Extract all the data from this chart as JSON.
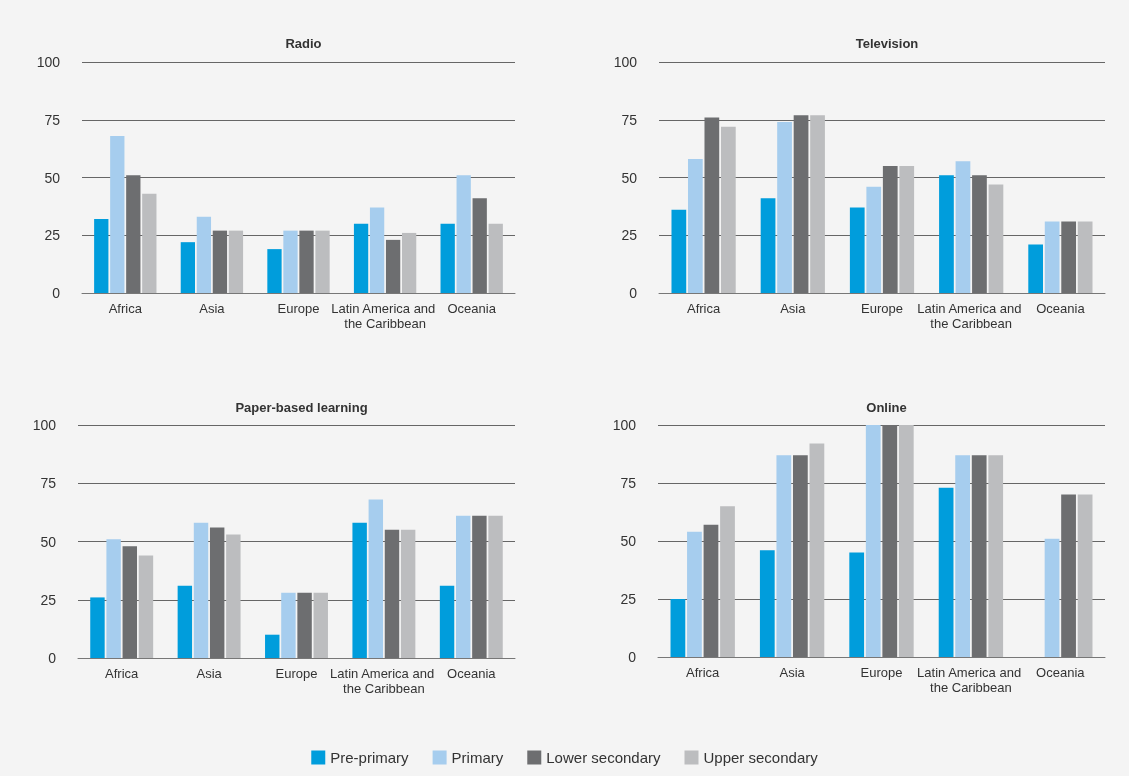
{
  "chart_data": [
    {
      "type": "bar",
      "title": "Radio",
      "categories": [
        "Africa",
        "Asia",
        "Europe",
        "Latin America and the Caribbean",
        "Oceania"
      ],
      "ylim": [
        0,
        100
      ],
      "yticks": [
        0,
        25,
        50,
        75,
        100
      ],
      "grid": "y",
      "series": [
        {
          "color": "#009ddc",
          "values": [
            32,
            22,
            19,
            30,
            30
          ]
        },
        {
          "color": "#a6cdee",
          "values": [
            68,
            33,
            27,
            37,
            51
          ]
        },
        {
          "color": "#6d6e70",
          "values": [
            51,
            27,
            27,
            23,
            41
          ]
        },
        {
          "color": "#bcbdbf",
          "values": [
            43,
            27,
            27,
            26,
            30
          ]
        }
      ]
    },
    {
      "type": "bar",
      "title": "Television",
      "categories": [
        "Africa",
        "Asia",
        "Europe",
        "Latin America and the Caribbean",
        "Oceania"
      ],
      "ylim": [
        0,
        100
      ],
      "yticks": [
        0,
        25,
        50,
        75,
        100
      ],
      "grid": "y",
      "series": [
        {
          "color": "#009ddc",
          "values": [
            36,
            41,
            37,
            51,
            21
          ]
        },
        {
          "color": "#a6cdee",
          "values": [
            58,
            74,
            46,
            57,
            31
          ]
        },
        {
          "color": "#6d6e70",
          "values": [
            76,
            77,
            55,
            51,
            31
          ]
        },
        {
          "color": "#bcbdbf",
          "values": [
            72,
            77,
            55,
            47,
            31
          ]
        }
      ]
    },
    {
      "type": "bar",
      "title": "Paper-based learning",
      "categories": [
        "Africa",
        "Asia",
        "Europe",
        "Latin America and the Caribbean",
        "Oceania"
      ],
      "ylim": [
        0,
        100
      ],
      "yticks": [
        0,
        25,
        50,
        75,
        100
      ],
      "grid": "y",
      "series": [
        {
          "color": "#009ddc",
          "values": [
            26,
            31,
            10,
            58,
            31
          ]
        },
        {
          "color": "#a6cdee",
          "values": [
            51,
            58,
            28,
            68,
            61
          ]
        },
        {
          "color": "#6d6e70",
          "values": [
            48,
            56,
            28,
            55,
            61
          ]
        },
        {
          "color": "#bcbdbf",
          "values": [
            44,
            53,
            28,
            55,
            61
          ]
        }
      ]
    },
    {
      "type": "bar",
      "title": "Online",
      "categories": [
        "Africa",
        "Asia",
        "Europe",
        "Latin America and the Caribbean",
        "Oceania"
      ],
      "ylim": [
        0,
        100
      ],
      "yticks": [
        0,
        25,
        50,
        75,
        100
      ],
      "grid": "y",
      "legend": "bottom",
      "series": [
        {
          "name": "Pre-primary",
          "color": "#009ddc",
          "values": [
            25,
            46,
            45,
            73,
            null
          ]
        },
        {
          "name": "Primary",
          "color": "#a6cdee",
          "values": [
            54,
            87,
            100,
            87,
            51
          ]
        },
        {
          "name": "Lower secondary",
          "color": "#6d6e70",
          "values": [
            57,
            87,
            100,
            87,
            70
          ]
        },
        {
          "name": "Upper secondary",
          "color": "#bcbdbf",
          "values": [
            65,
            92,
            100,
            87,
            70
          ]
        }
      ]
    }
  ]
}
